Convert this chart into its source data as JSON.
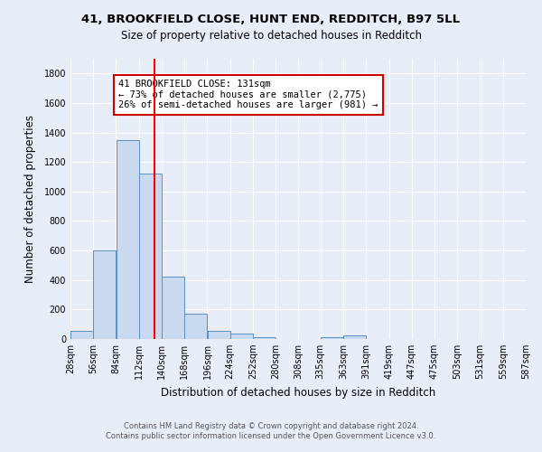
{
  "title_line1": "41, BROOKFIELD CLOSE, HUNT END, REDDITCH, B97 5LL",
  "title_line2": "Size of property relative to detached houses in Redditch",
  "xlabel": "Distribution of detached houses by size in Redditch",
  "ylabel": "Number of detached properties",
  "footnote_line1": "Contains HM Land Registry data © Crown copyright and database right 2024.",
  "footnote_line2": "Contains public sector information licensed under the Open Government Licence v3.0.",
  "annotation_line1": "41 BROOKFIELD CLOSE: 131sqm",
  "annotation_line2": "← 73% of detached houses are smaller (2,775)",
  "annotation_line3": "26% of semi-detached houses are larger (981) →",
  "bar_edges": [
    28,
    56,
    84,
    112,
    140,
    168,
    196,
    224,
    252,
    280,
    308,
    335,
    363,
    391,
    419,
    447,
    475,
    503,
    531,
    559,
    587
  ],
  "bar_heights": [
    55,
    600,
    1350,
    1120,
    425,
    170,
    55,
    35,
    10,
    0,
    0,
    15,
    25,
    0,
    0,
    0,
    0,
    0,
    0,
    0
  ],
  "bar_color": "#c9d9f0",
  "bar_edge_color": "#5a8fc3",
  "red_line_x": 131,
  "ylim": [
    0,
    1900
  ],
  "yticks": [
    0,
    200,
    400,
    600,
    800,
    1000,
    1200,
    1400,
    1600,
    1800
  ],
  "background_color": "#e8eef8",
  "plot_background": "#e8eef8",
  "grid_color": "#ffffff",
  "annotation_box_facecolor": "#ffffff",
  "annotation_box_edgecolor": "#cc0000",
  "title1_fontsize": 9.5,
  "title2_fontsize": 8.5,
  "xlabel_fontsize": 8.5,
  "ylabel_fontsize": 8.5,
  "tick_fontsize": 7,
  "annotation_fontsize": 7.5,
  "footnote_fontsize": 6.0
}
